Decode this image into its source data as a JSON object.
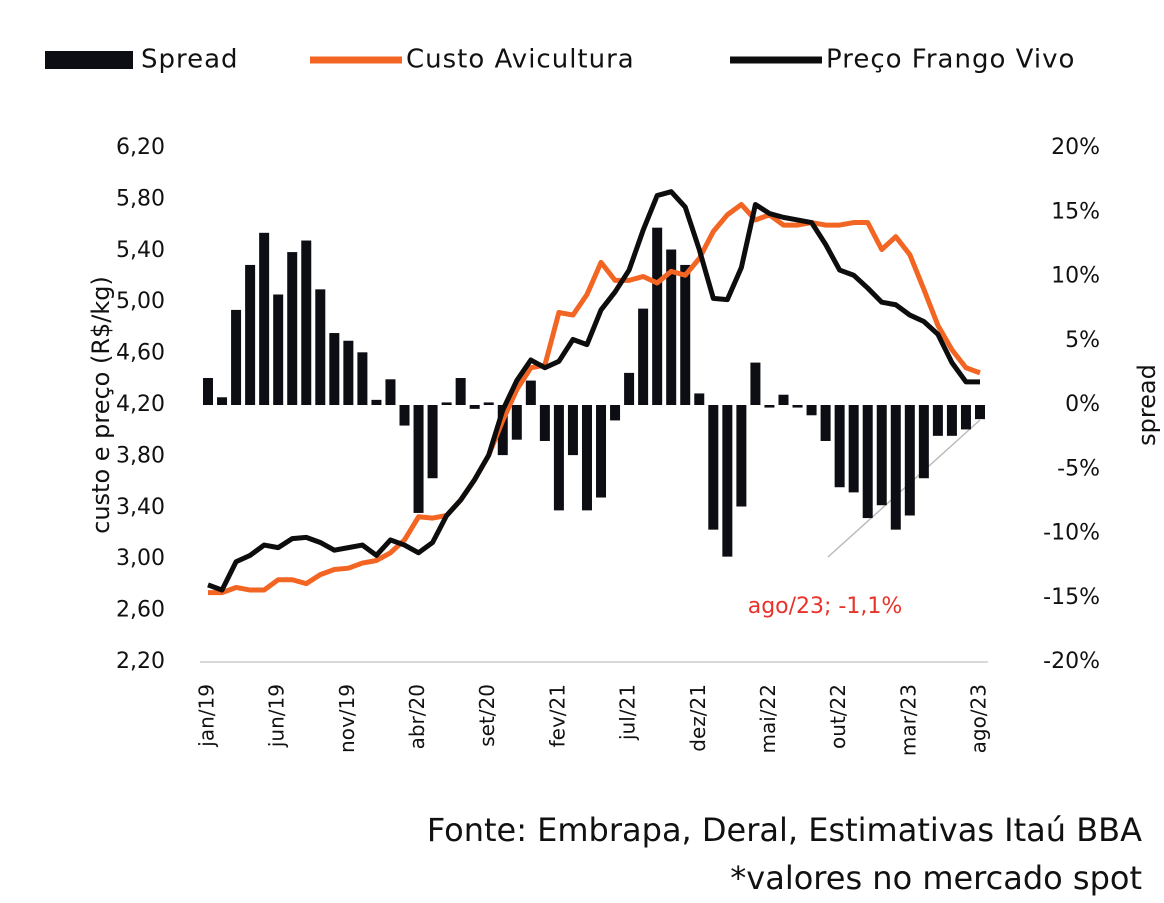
{
  "chart_data": {
    "type": "bar-line",
    "legend": "top",
    "categories": [
      "jan/19",
      null,
      null,
      null,
      null,
      "jun/19",
      null,
      null,
      null,
      null,
      "nov/19",
      null,
      null,
      null,
      null,
      "abr/20",
      null,
      null,
      null,
      null,
      "set/20",
      null,
      null,
      null,
      null,
      "fev/21",
      null,
      null,
      null,
      null,
      "jul/21",
      null,
      null,
      null,
      null,
      "dez/21",
      null,
      null,
      null,
      null,
      "mai/22",
      null,
      null,
      null,
      null,
      "out/22",
      null,
      null,
      null,
      null,
      "mar/23",
      null,
      null,
      null,
      null,
      "ago/23"
    ],
    "series": [
      {
        "name": "Spread",
        "type": "bar",
        "axis": "y2",
        "color": "#0d0d14",
        "values": [
          2.1,
          0.6,
          7.4,
          10.9,
          13.4,
          8.6,
          11.9,
          12.8,
          9.0,
          5.6,
          5.0,
          4.1,
          0.4,
          2.0,
          -1.6,
          -8.4,
          -5.7,
          0.2,
          2.1,
          -0.3,
          0.2,
          -3.9,
          -2.7,
          1.9,
          -2.8,
          -8.2,
          -3.9,
          -8.2,
          -7.2,
          -1.2,
          2.5,
          7.5,
          13.8,
          12.1,
          10.9,
          0.9,
          -9.7,
          -11.8,
          -7.9,
          3.3,
          -0.2,
          0.8,
          -0.2,
          -0.8,
          -2.8,
          -6.4,
          -6.8,
          -8.8,
          -7.8,
          -9.7,
          -8.6,
          -5.7,
          -2.4,
          -2.4,
          -1.9,
          -1.1
        ]
      },
      {
        "name": "Custo Avicultura",
        "type": "line",
        "color": "#f26522",
        "values": [
          2.74,
          2.74,
          2.78,
          2.76,
          2.76,
          2.84,
          2.84,
          2.81,
          2.88,
          2.92,
          2.93,
          2.97,
          2.99,
          3.05,
          3.15,
          3.33,
          3.32,
          3.34,
          3.46,
          3.62,
          3.81,
          4.08,
          4.32,
          4.49,
          4.51,
          4.92,
          4.9,
          5.06,
          5.31,
          5.17,
          5.17,
          5.2,
          5.15,
          5.24,
          5.21,
          5.34,
          5.55,
          5.68,
          5.76,
          5.64,
          5.68,
          5.6,
          5.6,
          5.62,
          5.6,
          5.6,
          5.62,
          5.62,
          5.41,
          5.51,
          5.37,
          5.1,
          4.82,
          4.63,
          4.49,
          4.45
        ]
      },
      {
        "name": "Preço Frango Vivo",
        "type": "line",
        "color": "#0d0d0d",
        "values": [
          2.8,
          2.76,
          2.98,
          3.03,
          3.11,
          3.09,
          3.16,
          3.17,
          3.13,
          3.07,
          3.09,
          3.11,
          3.03,
          3.15,
          3.11,
          3.05,
          3.13,
          3.34,
          3.46,
          3.62,
          3.81,
          4.16,
          4.39,
          4.55,
          4.49,
          4.54,
          4.71,
          4.67,
          4.94,
          5.08,
          5.25,
          5.56,
          5.83,
          5.86,
          5.74,
          5.41,
          5.03,
          5.02,
          5.27,
          5.76,
          5.69,
          5.66,
          5.64,
          5.62,
          5.45,
          5.25,
          5.21,
          5.11,
          5.0,
          4.98,
          4.9,
          4.85,
          4.75,
          4.53,
          4.38,
          4.38
        ]
      }
    ],
    "ylabel": "custo e preço (R$/kg)",
    "y2label": "spread",
    "ylim": [
      2.2,
      6.2
    ],
    "yticks": [
      {
        "value": 2.2,
        "label": "2,20"
      },
      {
        "value": 2.6,
        "label": "2,60"
      },
      {
        "value": 3.0,
        "label": "3,00"
      },
      {
        "value": 3.4,
        "label": "3,40"
      },
      {
        "value": 3.8,
        "label": "3,80"
      },
      {
        "value": 4.2,
        "label": "4,20"
      },
      {
        "value": 4.6,
        "label": "4,60"
      },
      {
        "value": 5.0,
        "label": "5,00"
      },
      {
        "value": 5.4,
        "label": "5,40"
      },
      {
        "value": 5.8,
        "label": "5,80"
      },
      {
        "value": 6.2,
        "label": "6,20"
      }
    ],
    "y2lim": [
      -20,
      20
    ],
    "y2ticks": [
      {
        "value": -20,
        "label": "-20%"
      },
      {
        "value": -15,
        "label": "-15%"
      },
      {
        "value": -10,
        "label": "-10%"
      },
      {
        "value": -5,
        "label": "-5%"
      },
      {
        "value": 0,
        "label": "0%"
      },
      {
        "value": 5,
        "label": "5%"
      },
      {
        "value": 10,
        "label": "10%"
      },
      {
        "value": 15,
        "label": "15%"
      },
      {
        "value": 20,
        "label": "20%"
      }
    ],
    "annotation": "ago/23; -1,1%",
    "source": "Fonte: Embrapa, Deral, Estimativas Itaú BBA",
    "note": "*valores no mercado spot"
  }
}
